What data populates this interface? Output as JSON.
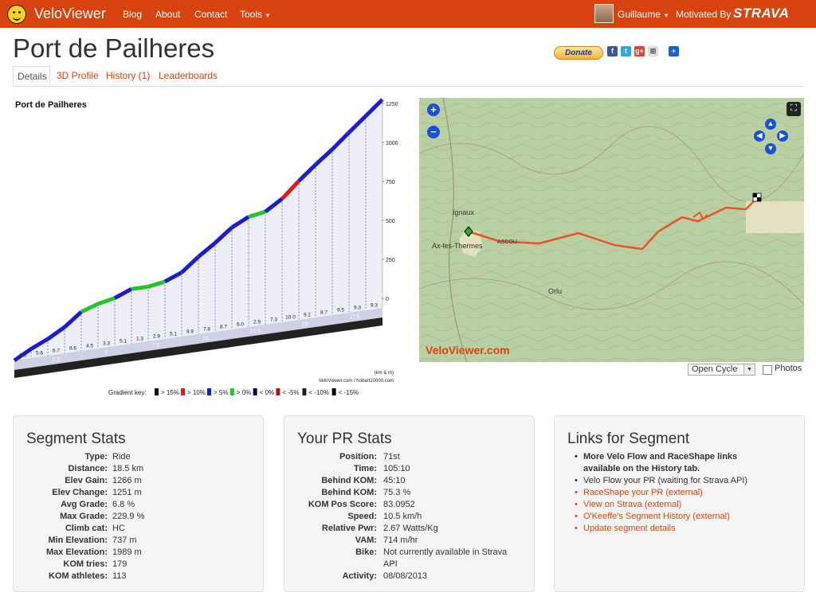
{
  "header": {
    "brand": "VeloViewer",
    "nav": {
      "blog": "Blog",
      "about": "About",
      "contact": "Contact",
      "tools": "Tools"
    },
    "user": "Guillaume",
    "motivated": "Motivated By",
    "strava": "STRAVA"
  },
  "page": {
    "title": "Port de Pailheres",
    "donate": "Donate",
    "tabs": [
      "Details",
      "3D Profile",
      "History (1)",
      "Leaderboards"
    ]
  },
  "profile": {
    "title": "Port de Pailheres",
    "y_ticks": [
      "1250",
      "1000",
      "750",
      "500",
      "250",
      "0"
    ],
    "seg_grades": [
      "6.5",
      "5.6",
      "6.7",
      "8.6",
      "4.5",
      "3.3",
      "5.1",
      "1.3",
      "2.9",
      "5.1",
      "8.9",
      "7.8",
      "8.7",
      "6.0",
      "2.9",
      "7.3",
      "10.0",
      "9.2",
      "8.7",
      "9.5",
      "9.3",
      "9.3"
    ],
    "km_labels": [
      "2.5",
      "5",
      "7.5",
      "10",
      "12.5",
      "15",
      "17.5"
    ],
    "units": "(km & m)",
    "credit": "VeloViewer.com / hobart10000.com",
    "gradient_key_label": "Gradient key:",
    "gradient_key": [
      {
        "label": "> 15%",
        "color": "#111111"
      },
      {
        "label": "> 10%",
        "color": "#e8161b"
      },
      {
        "label": "> 5%",
        "color": "#1c1cd0"
      },
      {
        "label": "> 0%",
        "color": "#22c42a"
      },
      {
        "label": "< 0%",
        "color": "#0a0a40"
      },
      {
        "label": "< -5%",
        "color": "#b01010"
      },
      {
        "label": "< -10%",
        "color": "#222222"
      },
      {
        "label": "< -15%",
        "color": "#000000"
      }
    ]
  },
  "map": {
    "places": {
      "ignaux": "Ignaux",
      "ax": "Ax-les-Thermes",
      "ascou": "ASCOU",
      "orlu": "Orlu"
    },
    "watermark": "VeloViewer.com",
    "layer": "Open Cycle",
    "photos": "Photos"
  },
  "segment_stats": {
    "title": "Segment Stats",
    "rows": [
      {
        "label": "Type:",
        "value": "Ride"
      },
      {
        "label": "Distance:",
        "value": "18.5 km"
      },
      {
        "label": "Elev Gain:",
        "value": "1266 m"
      },
      {
        "label": "Elev Change:",
        "value": "1251 m"
      },
      {
        "label": "Avg Grade:",
        "value": "6.8 %"
      },
      {
        "label": "Max Grade:",
        "value": "229.9 %"
      },
      {
        "label": "Climb cat:",
        "value": "HC"
      },
      {
        "label": "Min Elevation:",
        "value": "737 m"
      },
      {
        "label": "Max Elevation:",
        "value": "1989 m"
      },
      {
        "label": "KOM tries:",
        "value": "179"
      },
      {
        "label": "KOM athletes:",
        "value": "113"
      }
    ]
  },
  "pr_stats": {
    "title": "Your PR Stats",
    "rows": [
      {
        "label": "Position:",
        "value": "71st"
      },
      {
        "label": "Time:",
        "value": "105:10"
      },
      {
        "label": "Behind KOM:",
        "value": "45:10"
      },
      {
        "label": "Behind KOM:",
        "value": "75.3 %"
      },
      {
        "label": "KOM Pos Score:",
        "value": "83.0952"
      },
      {
        "label": "Speed:",
        "value": "10.5 km/h"
      },
      {
        "label": "Relative Pwr:",
        "value": "2.67 Watts/Kg"
      },
      {
        "label": "VAM:",
        "value": "714 m/hr"
      },
      {
        "label": "Bike:",
        "value": "Not currently available in Strava"
      },
      {
        "label": "",
        "value": "API"
      },
      {
        "label": "Activity:",
        "value": "08/08/2013"
      }
    ]
  },
  "links": {
    "title": "Links for Segment",
    "items": [
      {
        "text": "More Velo Flow and RaceShape links",
        "style": "bold"
      },
      {
        "text": "available on the History tab.",
        "style": "bold"
      },
      {
        "text": "Velo Flow your PR (waiting for Strava API)",
        "style": "plain"
      },
      {
        "text": "RaceShape your PR (external)",
        "style": "link"
      },
      {
        "text": "View on Strava (external)",
        "style": "link"
      },
      {
        "text": "O'Keeffe's Segment History (external)",
        "style": "link"
      },
      {
        "text": "Update segment details",
        "style": "link"
      }
    ]
  }
}
